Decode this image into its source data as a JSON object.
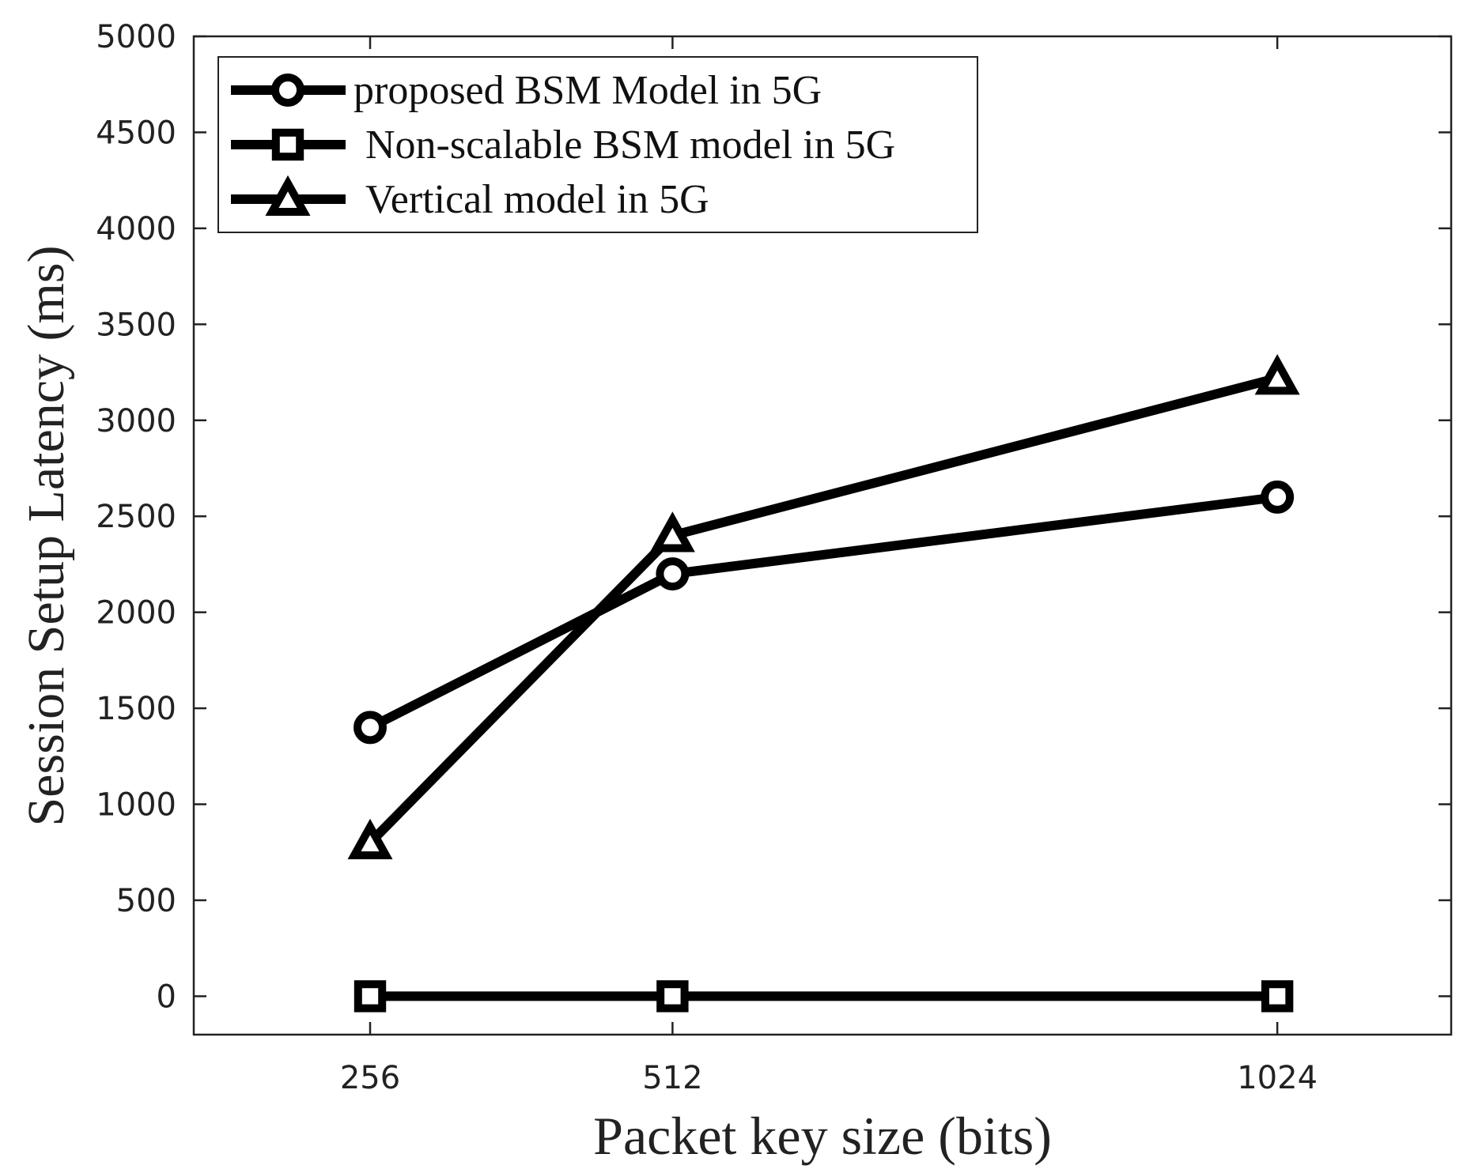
{
  "chart_data": {
    "type": "line",
    "title": "",
    "xlabel": "Packet key size (bits)",
    "ylabel": "Session Setup Latency (ms)",
    "x": [
      256,
      512,
      1024
    ],
    "x_tick_labels": [
      "256",
      "512",
      "1024"
    ],
    "xlim": [
      106.7,
      1171.2
    ],
    "ylim": [
      -200,
      5000
    ],
    "y_ticks": [
      0,
      500,
      1000,
      1500,
      2000,
      2500,
      3000,
      3500,
      4000,
      4500,
      5000
    ],
    "y_tick_labels": [
      "0",
      "500",
      "1000",
      "1500",
      "2000",
      "2500",
      "3000",
      "3500",
      "4000",
      "4500",
      "5000"
    ],
    "grid": false,
    "legend_position": "top-left",
    "series": [
      {
        "name": "proposed BSM Model in 5G",
        "marker": "circle",
        "values": [
          1400,
          2200,
          2600
        ]
      },
      {
        "name": "Non-scalable BSM model in 5G",
        "marker": "square",
        "values": [
          0,
          0,
          0
        ]
      },
      {
        "name": "Vertical model in 5G",
        "marker": "triangle",
        "values": [
          800,
          2400,
          3220
        ]
      }
    ],
    "colors": {
      "line": "#000000",
      "axis": "#222222",
      "background": "#ffffff"
    }
  }
}
